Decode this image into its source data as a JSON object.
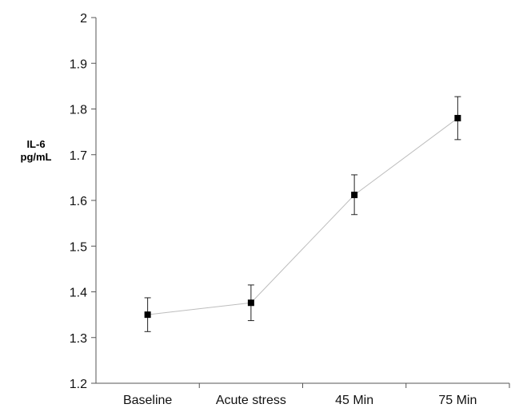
{
  "chart_data": {
    "type": "line",
    "title": "",
    "xlabel": "",
    "ylabel_lines": [
      "IL-6",
      "pg/mL"
    ],
    "categories": [
      "Baseline",
      "Acute stress",
      "45 Min",
      "75 Min"
    ],
    "ylim": [
      1.2,
      2.0
    ],
    "yticks": [
      1.2,
      1.3,
      1.4,
      1.5,
      1.6,
      1.7,
      1.8,
      1.9,
      2.0
    ],
    "ytick_labels": [
      "1.2",
      "1.3",
      "1.4",
      "1.5",
      "1.6",
      "1.7",
      "1.8",
      "1.9",
      "2"
    ],
    "series": [
      {
        "values": [
          1.35,
          1.376,
          1.612,
          1.78
        ],
        "error_low": [
          1.313,
          1.337,
          1.569,
          1.733
        ],
        "error_high": [
          1.387,
          1.415,
          1.656,
          1.827
        ]
      }
    ],
    "grid": false,
    "legend": "none",
    "marker": "square",
    "line_color": "#bdbdbd",
    "marker_color": "#000000"
  }
}
